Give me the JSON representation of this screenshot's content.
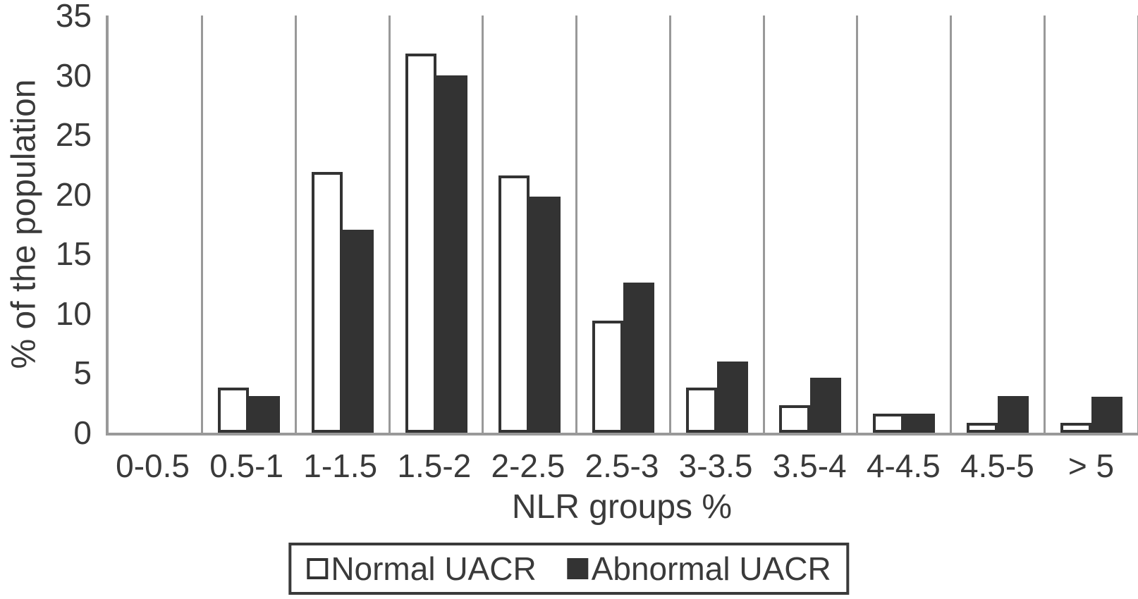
{
  "chart_data": {
    "type": "bar",
    "title": "",
    "xlabel": "NLR groups %",
    "ylabel": "% of the population",
    "categories": [
      "0-0.5",
      "0.5-1",
      "1-1.5",
      "1.5-2",
      "2-2.5",
      "2.5-3",
      "3-3.5",
      "3.5-4",
      "4-4.5",
      "4.5-5",
      "> 5"
    ],
    "series": [
      {
        "name": "Normal UACR",
        "swatch": "outline-square",
        "values": [
          0,
          3.8,
          21.9,
          31.8,
          21.6,
          9.4,
          3.8,
          2.3,
          1.6,
          0.8,
          0.8
        ]
      },
      {
        "name": "Abnormal UACR",
        "swatch": "filled-square",
        "values": [
          0,
          3.1,
          17,
          30,
          19.8,
          12.6,
          6,
          4.6,
          1.6,
          3.1,
          3
        ]
      }
    ],
    "ylim": [
      0,
      35
    ],
    "y_ticks": [
      0,
      5,
      10,
      15,
      20,
      25,
      30,
      35
    ],
    "grid": "vertical-category-separators",
    "legend_position": "bottom-center"
  },
  "colors": {
    "background": "#ffffff",
    "bar_filled": "#333333",
    "bar_outline_stroke": "#333333",
    "bar_outline_fill": "#ffffff",
    "gridline": "#999999",
    "axis_line": "#999999",
    "text": "#3a3a3a",
    "legend_border": "#3a3a3a"
  }
}
